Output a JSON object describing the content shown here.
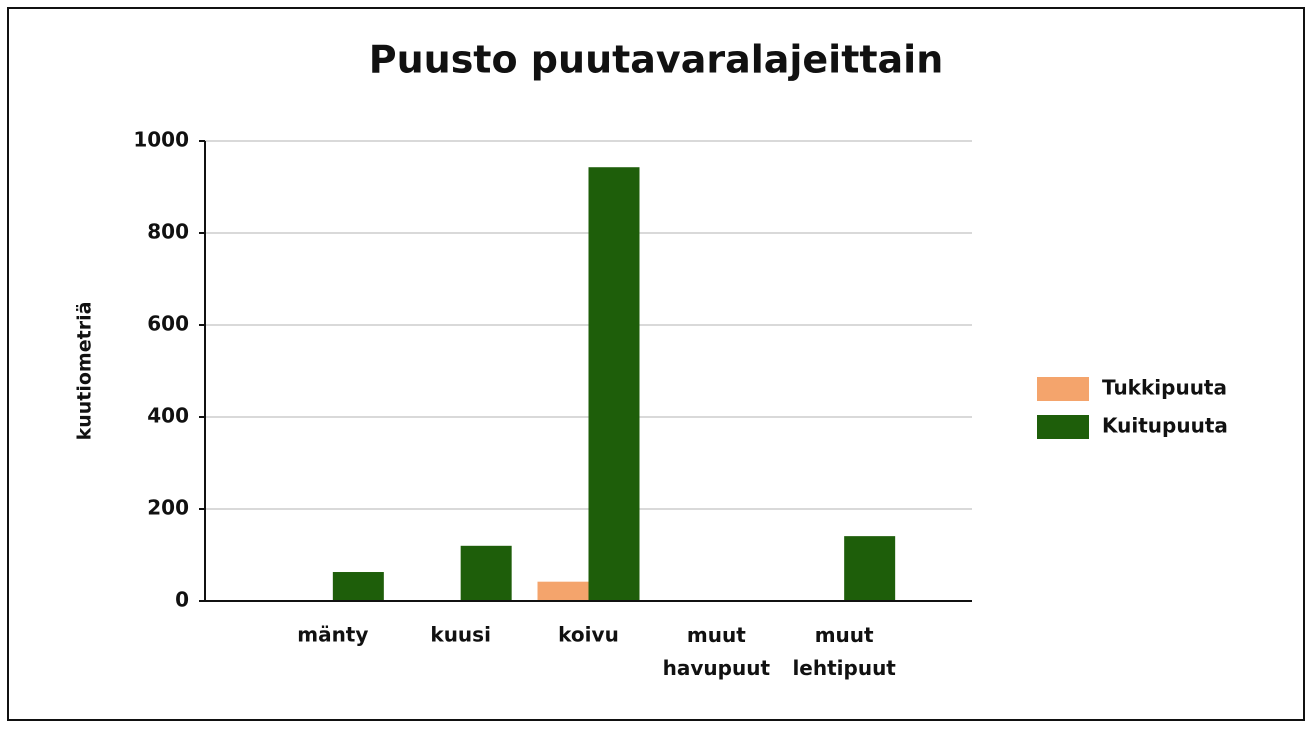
{
  "chart_data": {
    "type": "bar",
    "title": "Puusto puutavaralajeittain",
    "y_label": "kuutiometriä",
    "categories": [
      "mänty",
      "kuusi",
      "koivu",
      "muut havupuut",
      "muut lehtipuut"
    ],
    "series": [
      {
        "name": "Tukkipuuta",
        "color": "#f4a46c",
        "values": [
          0,
          2,
          42,
          0,
          0
        ]
      },
      {
        "name": "Kuitupuuta",
        "color": "#1e5e0a",
        "values": [
          63,
          120,
          943,
          0,
          141
        ]
      }
    ],
    "ylim": [
      0,
      1000
    ],
    "yticks": [
      0,
      200,
      400,
      600,
      800,
      1000
    ],
    "grid": true,
    "legend": "right"
  }
}
